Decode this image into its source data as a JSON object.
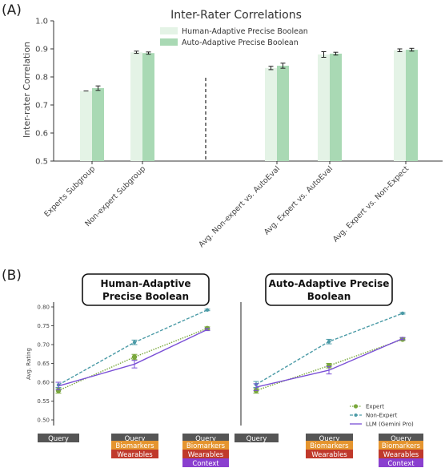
{
  "panel_a": {
    "label": "(A)",
    "title": "Inter-Rater Correlations",
    "ylabel": "Inter-rater Correlation",
    "legend": [
      "Human-Adaptive Precise Boolean",
      "Auto-Adaptive Precise Boolean"
    ],
    "colors": {
      "light": "#e4f3e6",
      "dark": "#a9d9b4",
      "axis": "#333333"
    }
  },
  "panel_b": {
    "label": "(B)",
    "left_title_line1": "Human-Adaptive",
    "left_title_line2": "Precise Boolean",
    "right_title_line1": "Auto-Adaptive Precise",
    "right_title_line2": "Boolean",
    "ylabel": "Avg. Rating",
    "legend": [
      "Expert",
      "Non-Expert",
      "LLM (Gemini Pro)"
    ],
    "colors": {
      "expert": "#7aa83c",
      "nonexpert": "#4a9aa6",
      "llm": "#7a4fd6"
    },
    "x_tags": {
      "query": "Query",
      "biomarkers": "Biomarkers",
      "wearables": "Wearables",
      "context": "Context",
      "colors": {
        "query": "#555555",
        "biomarkers": "#e5952f",
        "wearables": "#c0392b",
        "context": "#8a3fcf"
      }
    }
  },
  "chart_data": [
    {
      "type": "bar",
      "title": "Inter-Rater Correlations",
      "ylabel": "Inter-rater Correlation",
      "ylim": [
        0.5,
        1.0
      ],
      "yticks": [
        0.5,
        0.6,
        0.7,
        0.8,
        0.9,
        1.0
      ],
      "categories": [
        "Experts Subgroup",
        "Non-expert Subgroup",
        "Avg. Non-expert vs. AutoEval",
        "Avg. Expert vs. AutoEval",
        "Avg. Expert vs. Non-Expect"
      ],
      "series": [
        {
          "name": "Human-Adaptive Precise Boolean",
          "values": [
            0.75,
            0.888,
            0.832,
            0.88,
            0.895
          ],
          "errors": [
            0.0,
            0.004,
            0.006,
            0.01,
            0.005
          ]
        },
        {
          "name": "Auto-Adaptive Precise Boolean",
          "values": [
            0.76,
            0.885,
            0.84,
            0.883,
            0.897
          ],
          "errors": [
            0.008,
            0.004,
            0.009,
            0.005,
            0.005
          ]
        }
      ],
      "legend_position": "top-right"
    },
    {
      "type": "line",
      "title": "Human-Adaptive Precise Boolean",
      "ylabel": "Avg. Rating",
      "ylim": [
        0.5,
        0.8
      ],
      "yticks": [
        0.5,
        0.55,
        0.6,
        0.65,
        0.7,
        0.75,
        0.8
      ],
      "x": [
        "Query",
        "Query + Biomarkers + Wearables",
        "Query + Biomarkers + Wearables + Context"
      ],
      "series": [
        {
          "name": "Expert",
          "values": [
            0.578,
            0.667,
            0.743
          ],
          "errors": [
            0.007,
            0.007,
            0.004
          ]
        },
        {
          "name": "Non-Expert",
          "values": [
            0.593,
            0.706,
            0.792
          ],
          "errors": [
            0.007,
            0.006,
            0.002
          ]
        },
        {
          "name": "LLM (Gemini Pro)",
          "values": [
            0.59,
            0.648,
            0.74
          ],
          "errors": [
            0.01,
            0.01,
            0.003
          ]
        }
      ]
    },
    {
      "type": "line",
      "title": "Auto-Adaptive Precise Boolean",
      "ylim": [
        0.5,
        0.8
      ],
      "x": [
        "Query",
        "Query + Biomarkers + Wearables",
        "Query + Biomarkers + Wearables + Context"
      ],
      "series": [
        {
          "name": "Expert",
          "values": [
            0.578,
            0.644,
            0.714
          ],
          "errors": [
            0.007,
            0.006,
            0.003
          ]
        },
        {
          "name": "Non-Expert",
          "values": [
            0.594,
            0.708,
            0.783
          ],
          "errors": [
            0.008,
            0.006,
            0.002
          ]
        },
        {
          "name": "LLM (Gemini Pro)",
          "values": [
            0.587,
            0.632,
            0.716
          ],
          "errors": [
            0.009,
            0.01,
            0.003
          ]
        }
      ],
      "legend_position": "bottom-right"
    }
  ]
}
